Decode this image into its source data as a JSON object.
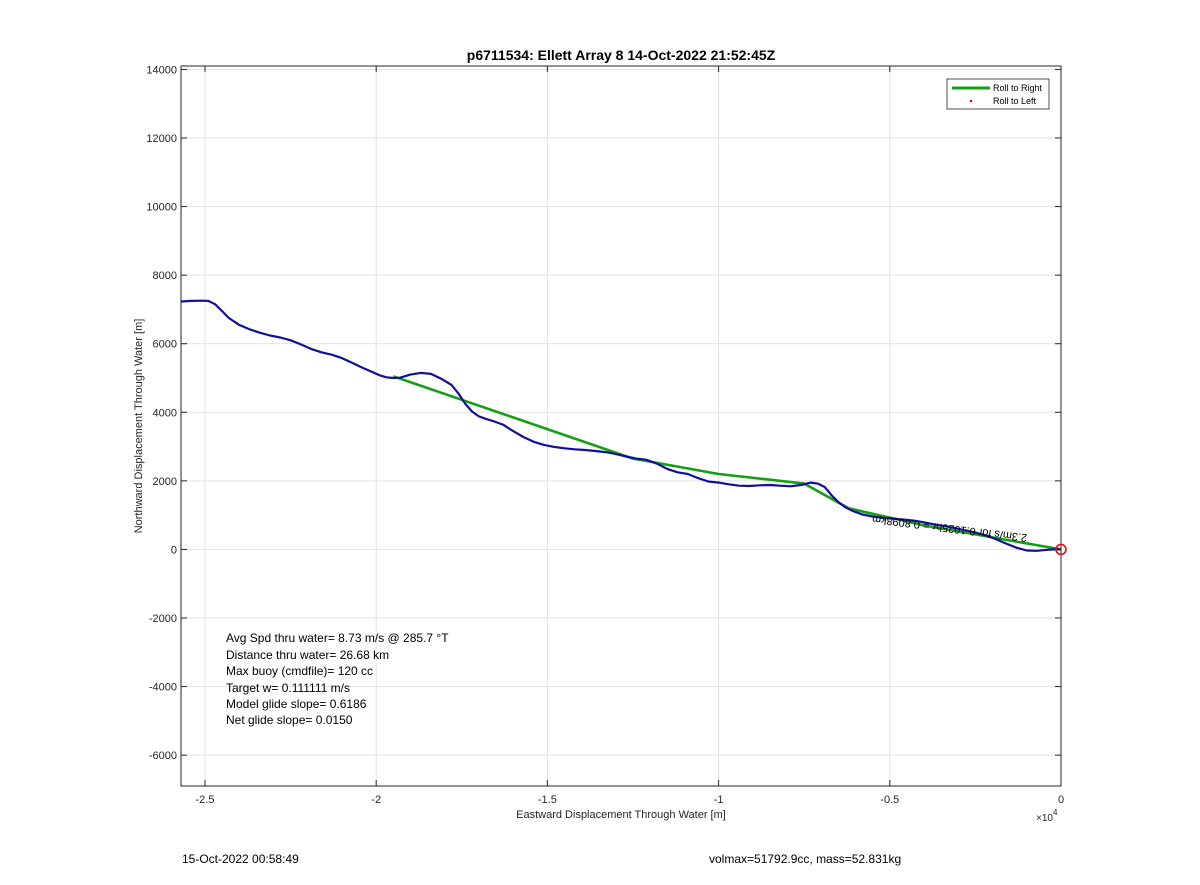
{
  "chart_data": {
    "type": "line",
    "title": "p6711534: Ellett Array 8 14-Oct-2022 21:52:45Z",
    "xlabel": "Eastward Displacement Through Water [m]",
    "ylabel": "Northward Displacement Through Water [m]",
    "x_exponent_label": "×10",
    "x_exponent_power": "4",
    "xlim": [
      -25700,
      0
    ],
    "ylim": [
      -6900,
      14100
    ],
    "xticks": [
      -25000,
      -20000,
      -15000,
      -10000,
      -5000,
      0
    ],
    "xtick_labels": [
      "-2.5",
      "-2",
      "-1.5",
      "-1",
      "-0.5",
      "0"
    ],
    "yticks": [
      -6000,
      -4000,
      -2000,
      0,
      2000,
      4000,
      6000,
      8000,
      10000,
      12000,
      14000
    ],
    "ytick_labels": [
      "-6000",
      "-4000",
      "-2000",
      "0",
      "2000",
      "4000",
      "6000",
      "8000",
      "10000",
      "12000",
      "14000"
    ],
    "grid": true,
    "legend_position": "top-right",
    "legend": [
      {
        "label": "Roll to Right",
        "color": "#14a014",
        "style": "line"
      },
      {
        "label": "Roll to Left",
        "color": "#e01010",
        "style": "dot"
      }
    ],
    "series": [
      {
        "color": "#10109a",
        "x": [
          -25700,
          -25400,
          -25100,
          -24900,
          -24700,
          -24500,
          -24300,
          -24000,
          -23700,
          -23400,
          -23100,
          -22800,
          -22500,
          -22200,
          -21900,
          -21600,
          -21300,
          -21000,
          -20700,
          -20400,
          -20100,
          -19900,
          -19700,
          -19500,
          -19300,
          -19000,
          -18700,
          -18400,
          -18100,
          -17800,
          -17600,
          -17400,
          -17200,
          -17000,
          -16800,
          -16600,
          -16300,
          -16000,
          -15700,
          -15400,
          -15100,
          -14800,
          -14500,
          -14200,
          -13900,
          -13600,
          -13300,
          -13000,
          -12700,
          -12400,
          -12100,
          -11800,
          -11500,
          -11200,
          -10900,
          -10600,
          -10300,
          -10000,
          -9700,
          -9400,
          -9100,
          -8800,
          -8500,
          -8200,
          -7900,
          -7600,
          -7300,
          -7100,
          -6900,
          -6700,
          -6500,
          -6300,
          -6100,
          -5800,
          -5500,
          -5200,
          -4900,
          -4600,
          -4300,
          -4000,
          -3700,
          -3400,
          -3100,
          -2800,
          -2500,
          -2200,
          -1900,
          -1600,
          -1300,
          -1000,
          -700,
          -400,
          -200,
          0
        ],
        "y": [
          7230,
          7250,
          7255,
          7250,
          7150,
          6950,
          6750,
          6550,
          6420,
          6320,
          6240,
          6180,
          6100,
          5980,
          5850,
          5750,
          5680,
          5580,
          5440,
          5300,
          5170,
          5080,
          5020,
          5000,
          5010,
          5100,
          5150,
          5120,
          4980,
          4800,
          4550,
          4250,
          4020,
          3880,
          3810,
          3750,
          3640,
          3450,
          3280,
          3140,
          3050,
          2990,
          2950,
          2920,
          2900,
          2870,
          2840,
          2780,
          2710,
          2650,
          2610,
          2500,
          2350,
          2250,
          2200,
          2080,
          1980,
          1950,
          1900,
          1860,
          1850,
          1870,
          1880,
          1860,
          1840,
          1880,
          1950,
          1920,
          1820,
          1580,
          1380,
          1230,
          1130,
          1020,
          960,
          920,
          900,
          870,
          840,
          790,
          730,
          680,
          620,
          560,
          490,
          410,
          300,
          170,
          50,
          -30,
          -40,
          -10,
          0,
          0
        ]
      },
      {
        "color": "#14a014",
        "x": [
          -19500,
          -12500,
          -10000,
          -7500,
          -6200,
          -4000,
          -2000,
          0
        ],
        "y": [
          5050,
          2650,
          2200,
          1920,
          1200,
          700,
          350,
          0
        ]
      }
    ],
    "annotation_rotated": "2.3m/s for 0.1025hr = 0.8098km",
    "annotations": [
      "Avg Spd thru water=  8.73 m/s @ 285.7 °T",
      "Distance thru water= 26.68 km",
      "Max buoy (cmdfile)= 120 cc",
      "Target w= 0.111111 m/s",
      "Model glide slope= 0.6186",
      "Net glide slope= 0.0150"
    ]
  },
  "footer": {
    "left": "15-Oct-2022 00:58:49",
    "right": "volmax=51792.9cc, mass=52.831kg"
  }
}
